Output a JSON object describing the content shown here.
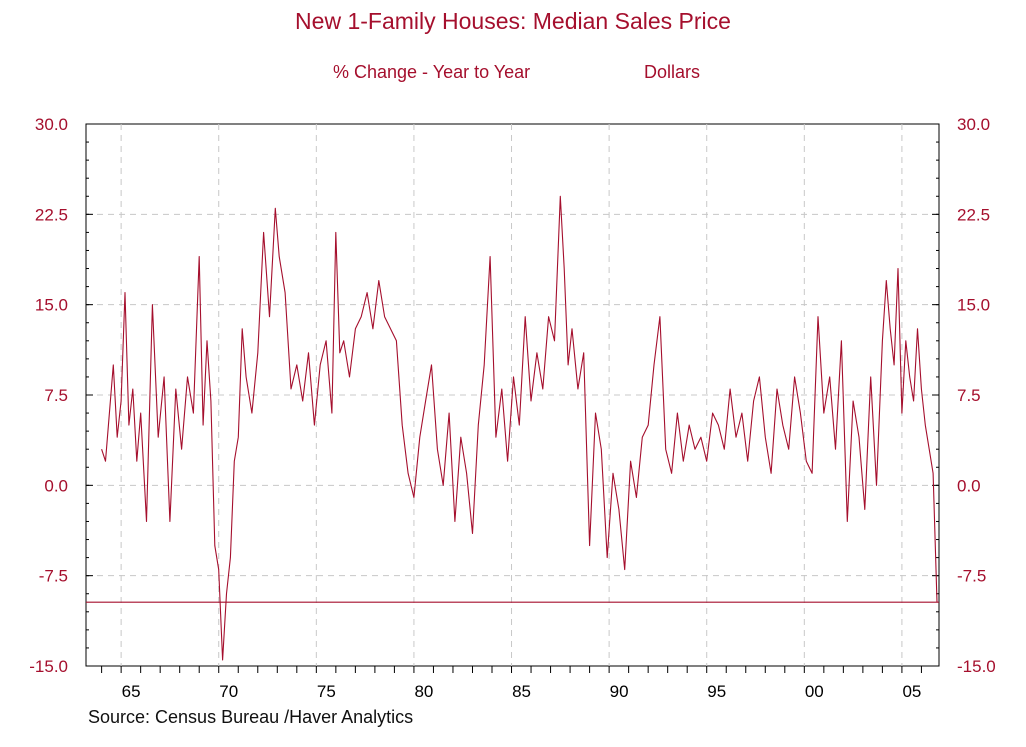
{
  "chart_data": {
    "type": "line",
    "title": "New 1-Family Houses: Median Sales Price",
    "subtitle_left": "% Change - Year to Year",
    "subtitle_right": "Dollars",
    "source": "Source:  Census Bureau /Haver Analytics",
    "x_range": [
      1963.2,
      2006.9
    ],
    "ylim": [
      -15,
      30
    ],
    "y_ticks": [
      30.0,
      22.5,
      15.0,
      7.5,
      0.0,
      -7.5,
      -15.0
    ],
    "y_tick_labels": [
      "30.0",
      "22.5",
      "15.0",
      "7.5",
      "0.0",
      "-7.5",
      "-15.0"
    ],
    "x_ticks": [
      1965,
      1970,
      1975,
      1980,
      1985,
      1990,
      1995,
      2000,
      2005
    ],
    "x_tick_labels": [
      "65",
      "70",
      "75",
      "80",
      "85",
      "90",
      "95",
      "00",
      "05"
    ],
    "grid": true,
    "reference_line": -9.7,
    "series": [
      {
        "color": "#a50f2d",
        "x": [
          1964.0,
          1964.2,
          1964.4,
          1964.6,
          1964.8,
          1965.0,
          1965.2,
          1965.4,
          1965.6,
          1965.8,
          1966.0,
          1966.3,
          1966.6,
          1966.9,
          1967.2,
          1967.5,
          1967.8,
          1968.1,
          1968.4,
          1968.7,
          1969.0,
          1969.2,
          1969.4,
          1969.6,
          1969.8,
          1970.0,
          1970.2,
          1970.4,
          1970.6,
          1970.8,
          1971.0,
          1971.2,
          1971.4,
          1971.7,
          1972.0,
          1972.3,
          1972.6,
          1972.9,
          1973.1,
          1973.4,
          1973.7,
          1974.0,
          1974.3,
          1974.6,
          1974.9,
          1975.2,
          1975.5,
          1975.8,
          1976.0,
          1976.2,
          1976.4,
          1976.7,
          1977.0,
          1977.3,
          1977.6,
          1977.9,
          1978.2,
          1978.5,
          1978.8,
          1979.1,
          1979.4,
          1979.7,
          1980.0,
          1980.3,
          1980.6,
          1980.9,
          1981.2,
          1981.5,
          1981.8,
          1982.1,
          1982.4,
          1982.7,
          1983.0,
          1983.3,
          1983.6,
          1983.9,
          1984.2,
          1984.5,
          1984.8,
          1985.1,
          1985.4,
          1985.7,
          1986.0,
          1986.3,
          1986.6,
          1986.9,
          1987.2,
          1987.5,
          1987.7,
          1987.9,
          1988.1,
          1988.4,
          1988.7,
          1989.0,
          1989.3,
          1989.6,
          1989.9,
          1990.2,
          1990.5,
          1990.8,
          1991.1,
          1991.4,
          1991.7,
          1992.0,
          1992.3,
          1992.6,
          1992.9,
          1993.2,
          1993.5,
          1993.8,
          1994.1,
          1994.4,
          1994.7,
          1995.0,
          1995.3,
          1995.6,
          1995.9,
          1996.2,
          1996.5,
          1996.8,
          1997.1,
          1997.4,
          1997.7,
          1998.0,
          1998.3,
          1998.6,
          1998.9,
          1999.2,
          1999.5,
          1999.8,
          2000.1,
          2000.4,
          2000.7,
          2001.0,
          2001.3,
          2001.6,
          2001.9,
          2002.2,
          2002.5,
          2002.8,
          2003.1,
          2003.4,
          2003.7,
          2004.0,
          2004.2,
          2004.4,
          2004.6,
          2004.8,
          2005.0,
          2005.2,
          2005.4,
          2005.6,
          2005.8,
          2006.0,
          2006.2,
          2006.4,
          2006.6,
          2006.8
        ],
        "values": [
          3.0,
          2.0,
          6.0,
          10.0,
          4.0,
          7.0,
          16.0,
          5.0,
          8.0,
          2.0,
          6.0,
          -3.0,
          15.0,
          4.0,
          9.0,
          -3.0,
          8.0,
          3.0,
          9.0,
          6.0,
          19.0,
          5.0,
          12.0,
          7.0,
          -5.0,
          -7.0,
          -14.5,
          -9.0,
          -6.0,
          2.0,
          4.0,
          13.0,
          9.0,
          6.0,
          11.0,
          21.0,
          14.0,
          23.0,
          19.0,
          16.0,
          8.0,
          10.0,
          7.0,
          11.0,
          5.0,
          10.0,
          12.0,
          6.0,
          21.0,
          11.0,
          12.0,
          9.0,
          13.0,
          14.0,
          16.0,
          13.0,
          17.0,
          14.0,
          13.0,
          12.0,
          5.0,
          1.0,
          -1.0,
          4.0,
          7.0,
          10.0,
          3.0,
          0.0,
          6.0,
          -3.0,
          4.0,
          1.0,
          -4.0,
          5.0,
          10.0,
          19.0,
          4.0,
          8.0,
          2.0,
          9.0,
          5.0,
          14.0,
          7.0,
          11.0,
          8.0,
          14.0,
          12.0,
          24.0,
          18.0,
          10.0,
          13.0,
          8.0,
          11.0,
          -5.0,
          6.0,
          3.0,
          -6.0,
          1.0,
          -2.0,
          -7.0,
          2.0,
          -1.0,
          4.0,
          5.0,
          10.0,
          14.0,
          3.0,
          1.0,
          6.0,
          2.0,
          5.0,
          3.0,
          4.0,
          2.0,
          6.0,
          5.0,
          3.0,
          8.0,
          4.0,
          6.0,
          2.0,
          7.0,
          9.0,
          4.0,
          1.0,
          8.0,
          5.0,
          3.0,
          9.0,
          6.0,
          2.0,
          1.0,
          14.0,
          6.0,
          9.0,
          3.0,
          12.0,
          -3.0,
          7.0,
          4.0,
          -2.0,
          9.0,
          0.0,
          12.0,
          17.0,
          13.0,
          10.0,
          18.0,
          6.0,
          12.0,
          9.0,
          7.0,
          13.0,
          8.0,
          5.0,
          3.0,
          1.0,
          -9.7
        ]
      }
    ]
  }
}
